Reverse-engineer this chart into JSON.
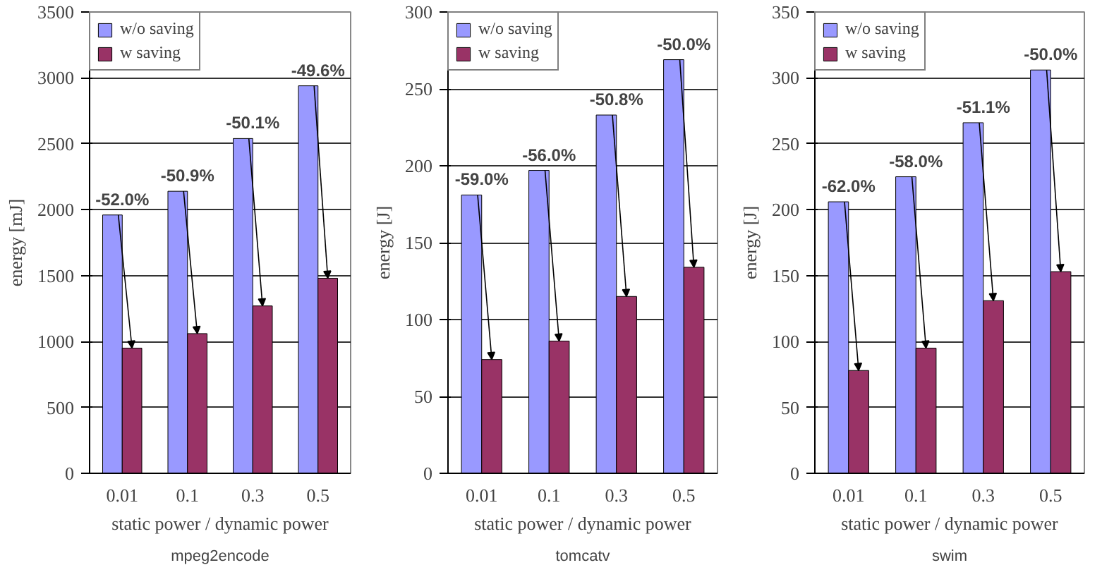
{
  "chart_data": [
    {
      "type": "bar",
      "title": "mpeg2encode",
      "xlabel": "static power / dynamic power",
      "ylabel": "energy [mJ]",
      "categories": [
        "0.01",
        "0.1",
        "0.3",
        "0.5"
      ],
      "series": [
        {
          "name": "w/o saving",
          "color": "#9999ff",
          "values": [
            1960,
            2140,
            2540,
            2940
          ]
        },
        {
          "name": "w saving",
          "color": "#993366",
          "values": [
            950,
            1060,
            1270,
            1480
          ]
        }
      ],
      "ylim": [
        0,
        3500
      ],
      "yticks": [
        0,
        500,
        1000,
        1500,
        2000,
        2500,
        3000,
        3500
      ],
      "grid": "y",
      "legend": "top left",
      "annotations": [
        {
          "text": "-52.0%",
          "x": "0.01",
          "y": 1960
        },
        {
          "text": "-50.9%",
          "x": "0.1",
          "y": 2140
        },
        {
          "text": "-50.1%",
          "x": "0.3",
          "y": 2540
        },
        {
          "text": "-49.6%",
          "x": "0.5",
          "y": 2940
        }
      ]
    },
    {
      "type": "bar",
      "title": "tomcatv",
      "xlabel": "static power / dynamic power",
      "ylabel": "energy [J]",
      "categories": [
        "0.01",
        "0.1",
        "0.3",
        "0.5"
      ],
      "series": [
        {
          "name": "w/o saving",
          "color": "#9999ff",
          "values": [
            181,
            197,
            233,
            269
          ]
        },
        {
          "name": "w saving",
          "color": "#993366",
          "values": [
            74,
            86,
            115,
            134
          ]
        }
      ],
      "ylim": [
        0,
        300
      ],
      "yticks": [
        0,
        50,
        100,
        150,
        200,
        250,
        300
      ],
      "grid": "y",
      "legend": "top left",
      "annotations": [
        {
          "text": "-59.0%",
          "x": "0.01",
          "y": 181
        },
        {
          "text": "-56.0%",
          "x": "0.1",
          "y": 197
        },
        {
          "text": "-50.8%",
          "x": "0.3",
          "y": 233
        },
        {
          "text": "-50.0%",
          "x": "0.5",
          "y": 269
        }
      ]
    },
    {
      "type": "bar",
      "title": "swim",
      "xlabel": "static power / dynamic power",
      "ylabel": "energy [J]",
      "categories": [
        "0.01",
        "0.1",
        "0.3",
        "0.5"
      ],
      "series": [
        {
          "name": "w/o saving",
          "color": "#9999ff",
          "values": [
            206,
            225,
            266,
            306
          ]
        },
        {
          "name": "w saving",
          "color": "#993366",
          "values": [
            78,
            95,
            131,
            153
          ]
        }
      ],
      "ylim": [
        0,
        350
      ],
      "yticks": [
        0,
        50,
        100,
        150,
        200,
        250,
        300,
        350
      ],
      "grid": "y",
      "legend": "top left",
      "annotations": [
        {
          "text": "-62.0%",
          "x": "0.01",
          "y": 206
        },
        {
          "text": "-58.0%",
          "x": "0.1",
          "y": 225
        },
        {
          "text": "-51.1%",
          "x": "0.3",
          "y": 266
        },
        {
          "text": "-50.0%",
          "x": "0.5",
          "y": 306
        }
      ]
    }
  ]
}
